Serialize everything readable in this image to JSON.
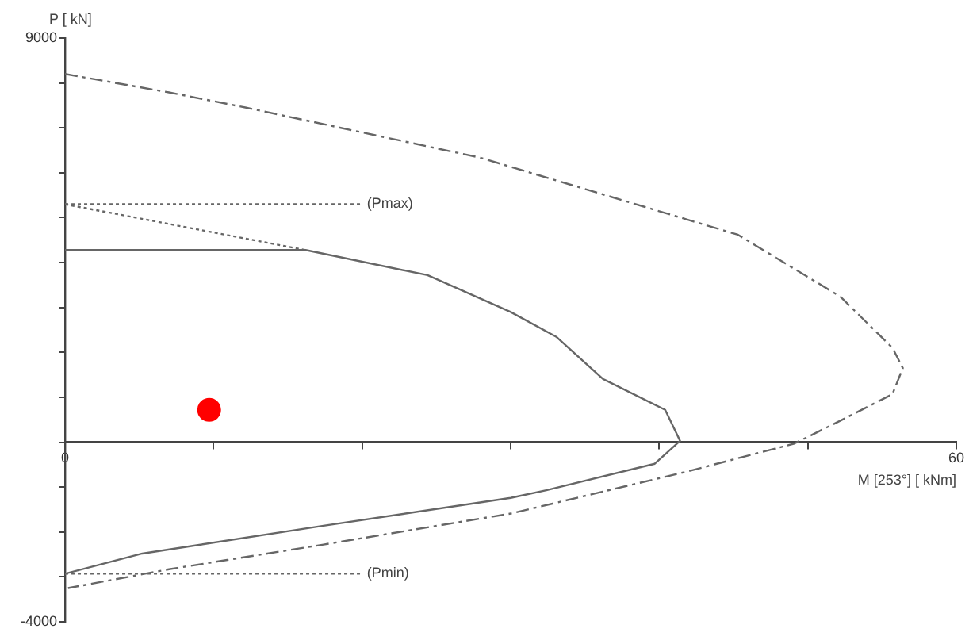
{
  "chart_data": {
    "type": "line",
    "xlabel": "M [253°] [ kNm]",
    "ylabel": "P [ kN]",
    "xlim": [
      0,
      60
    ],
    "ylim": [
      -4000,
      9000
    ],
    "xticks": [
      0,
      {
        "value": 10,
        "label": null
      },
      {
        "value": 20,
        "label": null
      },
      {
        "value": 30,
        "label": null
      },
      {
        "value": 40,
        "label": null
      },
      {
        "value": 50,
        "label": null
      },
      60
    ],
    "yticks": [
      -4000,
      {
        "value": -3000,
        "label": null
      },
      {
        "value": -2000,
        "label": null
      },
      {
        "value": -1000,
        "label": null
      },
      {
        "value": 0,
        "label": null
      },
      {
        "value": 1000,
        "label": null
      },
      {
        "value": 2000,
        "label": null
      },
      {
        "value": 3000,
        "label": null
      },
      {
        "value": 4000,
        "label": null
      },
      {
        "value": 5000,
        "label": null
      },
      {
        "value": 6000,
        "label": null
      },
      {
        "value": 7000,
        "label": null
      },
      {
        "value": 8000,
        "label": null
      },
      9000
    ],
    "grid": false,
    "legend": false,
    "marker": "none",
    "series": [
      {
        "type": "line",
        "line_style": "dashed",
        "color": "#666666",
        "x": [
          0,
          7.0,
          12.2,
          27.9,
          45.3,
          52.2,
          55.7,
          56.4,
          55.7,
          52.2,
          49.1,
          41.8,
          30.0,
          17.4,
          7.0,
          0.2
        ],
        "values": [
          8200,
          7790,
          7450,
          6340,
          4620,
          3240,
          2100,
          1650,
          1070,
          480,
          -30,
          -660,
          -1590,
          -2280,
          -2830,
          -3250
        ]
      },
      {
        "type": "line",
        "line_style": "solid",
        "color": "#666666",
        "x": [
          0,
          16.2,
          24.4,
          30.0,
          33.1,
          36.2,
          40.4,
          41.4,
          39.7,
          32.4,
          30.0,
          17.4,
          5.2,
          0
        ],
        "values": [
          4280,
          4280,
          3720,
          2900,
          2340,
          1410,
          720,
          30,
          -480,
          -1070,
          -1240,
          -1860,
          -2480,
          -2930
        ]
      },
      {
        "type": "line",
        "line_style": "dotted",
        "color": "#666666",
        "x": [
          0,
          20.0
        ],
        "values": [
          5300,
          5300
        ]
      },
      {
        "type": "line",
        "line_style": "dotted",
        "color": "#666666",
        "x": [
          0,
          16.2
        ],
        "values": [
          5300,
          4280
        ]
      },
      {
        "type": "line",
        "line_style": "dotted",
        "color": "#666666",
        "x": [
          0,
          20.0
        ],
        "values": [
          -2930,
          -2930
        ]
      },
      {
        "type": "scatter",
        "marker": "circle",
        "color": "#ff0000",
        "x": [
          9.7
        ],
        "values": [
          720
        ]
      }
    ],
    "annotations": [
      {
        "text": "(Pmax)",
        "x": 20.0,
        "y": 5300
      },
      {
        "text": "(Pmin)",
        "x": 20.0,
        "y": -2930
      }
    ]
  }
}
